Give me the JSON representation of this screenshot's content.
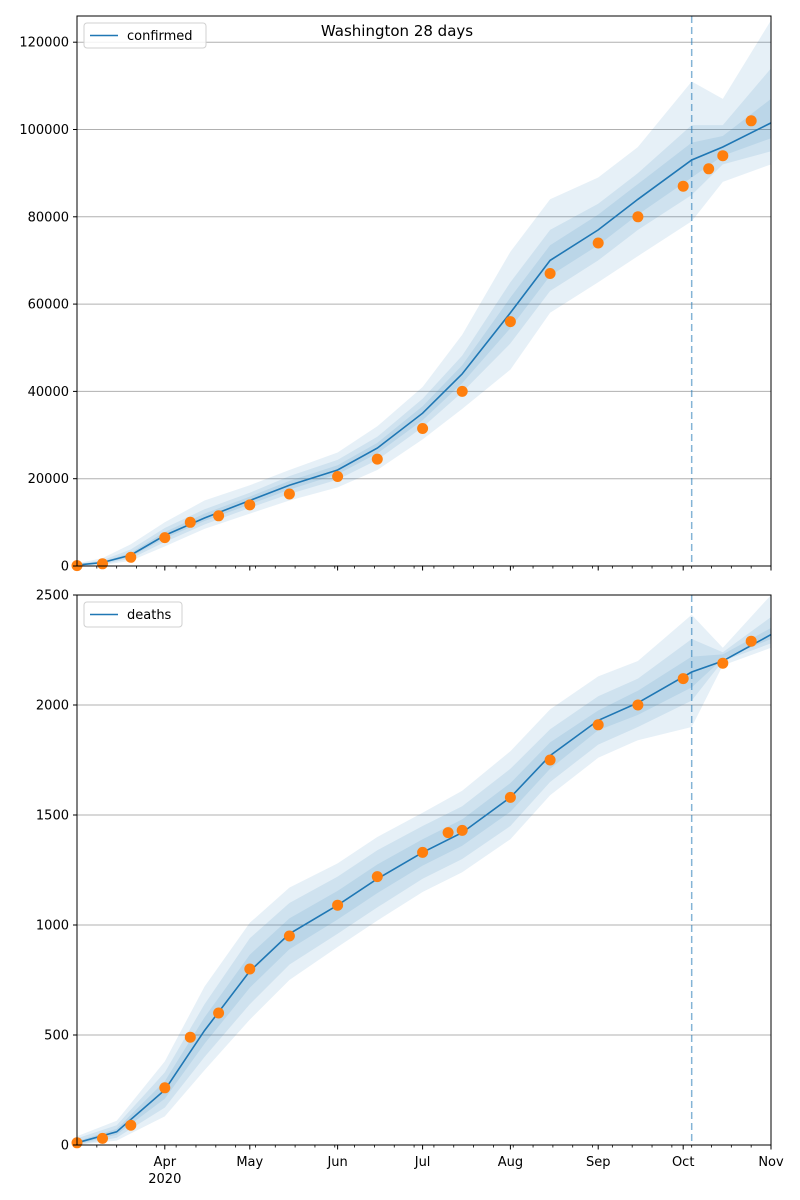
{
  "title": "Washington 28 days",
  "colors": {
    "model_line": "#1f77b4",
    "observed": "#ff7f0e",
    "band": "#1f77b4",
    "grid": "#b0b0b0",
    "vline": "#1f77b4"
  },
  "x_axis": {
    "start": "2020-03-01",
    "end": "2020-11-01",
    "month_ticks": [
      {
        "date": "2020-04-01",
        "label": "Apr"
      },
      {
        "date": "2020-05-01",
        "label": "May"
      },
      {
        "date": "2020-06-01",
        "label": "Jun"
      },
      {
        "date": "2020-07-01",
        "label": "Jul"
      },
      {
        "date": "2020-08-01",
        "label": "Aug"
      },
      {
        "date": "2020-09-01",
        "label": "Sep"
      },
      {
        "date": "2020-10-01",
        "label": "Oct"
      },
      {
        "date": "2020-11-01",
        "label": "Nov"
      }
    ],
    "year_label": "2020",
    "forecast_start": "2020-10-04"
  },
  "chart_data": [
    {
      "type": "line",
      "legend": "confirmed",
      "legend_position": "upper-left",
      "grid": "y",
      "ylim": [
        0,
        126000
      ],
      "yticks": [
        {
          "value": 0,
          "label": "0"
        },
        {
          "value": 20000,
          "label": "20000"
        },
        {
          "value": 40000,
          "label": "40000"
        },
        {
          "value": 60000,
          "label": "60000"
        },
        {
          "value": 80000,
          "label": "80000"
        },
        {
          "value": 100000,
          "label": "100000"
        },
        {
          "value": 120000,
          "label": "120000"
        }
      ],
      "model": [
        [
          "2020-03-01",
          200
        ],
        [
          "2020-03-10",
          800
        ],
        [
          "2020-03-20",
          2500
        ],
        [
          "2020-04-01",
          7000
        ],
        [
          "2020-04-15",
          11000
        ],
        [
          "2020-05-01",
          15000
        ],
        [
          "2020-05-15",
          18500
        ],
        [
          "2020-06-01",
          22000
        ],
        [
          "2020-06-15",
          27000
        ],
        [
          "2020-07-01",
          35000
        ],
        [
          "2020-07-15",
          44000
        ],
        [
          "2020-08-01",
          58000
        ],
        [
          "2020-08-15",
          70000
        ],
        [
          "2020-09-01",
          77000
        ],
        [
          "2020-09-15",
          84000
        ],
        [
          "2020-10-04",
          93000
        ],
        [
          "2020-10-15",
          96000
        ],
        [
          "2020-11-01",
          101500
        ]
      ],
      "bands": [
        {
          "level": "outer",
          "lower": [
            0,
            200,
            1200,
            4500,
            8500,
            12000,
            15000,
            18000,
            22000,
            29000,
            36000,
            45000,
            58000,
            65000,
            71000,
            79000,
            88000,
            92000
          ],
          "upper": [
            600,
            1800,
            5000,
            10000,
            15000,
            18500,
            22000,
            26000,
            32000,
            41000,
            53000,
            72000,
            84000,
            89000,
            96000,
            111000,
            107000,
            125000
          ]
        },
        {
          "level": "middle",
          "lower": [
            0,
            400,
            1700,
            5500,
            9500,
            13300,
            16500,
            19800,
            24300,
            31800,
            39800,
            51000,
            63000,
            70000,
            77000,
            85000,
            92000,
            95000
          ],
          "upper": [
            400,
            1300,
            3800,
            8700,
            13000,
            16800,
            20600,
            24300,
            29600,
            38300,
            48200,
            65000,
            77000,
            83000,
            90000,
            101000,
            101000,
            114000
          ]
        },
        {
          "level": "inner",
          "lower": [
            100,
            600,
            2100,
            6300,
            10300,
            14100,
            17500,
            21000,
            25800,
            33400,
            41900,
            54500,
            66500,
            73500,
            80500,
            89000,
            94000,
            98000
          ],
          "upper": [
            300,
            1000,
            3000,
            7800,
            12000,
            15900,
            19500,
            23100,
            28200,
            36600,
            46000,
            61500,
            73500,
            80500,
            87500,
            97000,
            98500,
            107000
          ]
        }
      ],
      "observed": [
        [
          "2020-03-01",
          100
        ],
        [
          "2020-03-10",
          500
        ],
        [
          "2020-03-20",
          2000
        ],
        [
          "2020-04-01",
          6500
        ],
        [
          "2020-04-10",
          10000
        ],
        [
          "2020-04-20",
          11500
        ],
        [
          "2020-05-01",
          14000
        ],
        [
          "2020-05-15",
          16500
        ],
        [
          "2020-06-01",
          20500
        ],
        [
          "2020-06-15",
          24500
        ],
        [
          "2020-07-01",
          31500
        ],
        [
          "2020-07-15",
          40000
        ],
        [
          "2020-08-01",
          56000
        ],
        [
          "2020-08-15",
          67000
        ],
        [
          "2020-09-01",
          74000
        ],
        [
          "2020-09-15",
          80000
        ],
        [
          "2020-10-01",
          87000
        ],
        [
          "2020-10-10",
          91000
        ],
        [
          "2020-10-15",
          94000
        ],
        [
          "2020-10-25",
          102000
        ]
      ]
    },
    {
      "type": "line",
      "legend": "deaths",
      "legend_position": "upper-left",
      "grid": "y",
      "ylim": [
        0,
        2500
      ],
      "yticks": [
        {
          "value": 0,
          "label": "0"
        },
        {
          "value": 500,
          "label": "500"
        },
        {
          "value": 1000,
          "label": "1000"
        },
        {
          "value": 1500,
          "label": "1500"
        },
        {
          "value": 2000,
          "label": "2000"
        },
        {
          "value": 2500,
          "label": "2500"
        }
      ],
      "model": [
        [
          "2020-03-01",
          10
        ],
        [
          "2020-03-15",
          60
        ],
        [
          "2020-04-01",
          250
        ],
        [
          "2020-04-15",
          520
        ],
        [
          "2020-05-01",
          790
        ],
        [
          "2020-05-15",
          960
        ],
        [
          "2020-06-01",
          1090
        ],
        [
          "2020-06-15",
          1210
        ],
        [
          "2020-07-01",
          1330
        ],
        [
          "2020-07-15",
          1420
        ],
        [
          "2020-08-01",
          1580
        ],
        [
          "2020-08-15",
          1770
        ],
        [
          "2020-09-01",
          1930
        ],
        [
          "2020-09-15",
          2010
        ],
        [
          "2020-10-04",
          2150
        ],
        [
          "2020-10-15",
          2200
        ],
        [
          "2020-11-01",
          2320
        ]
      ],
      "bands": [
        {
          "level": "outer",
          "lower": [
            0,
            20,
            130,
            340,
            570,
            750,
            900,
            1020,
            1150,
            1240,
            1390,
            1590,
            1760,
            1840,
            1900,
            2180,
            2260
          ],
          "upper": [
            40,
            110,
            380,
            720,
            1010,
            1170,
            1280,
            1400,
            1510,
            1610,
            1790,
            1980,
            2130,
            2200,
            2410,
            2260,
            2500
          ]
        },
        {
          "level": "middle",
          "lower": [
            0,
            33,
            170,
            400,
            640,
            820,
            960,
            1080,
            1210,
            1300,
            1450,
            1650,
            1820,
            1900,
            2020,
            2200,
            2280
          ],
          "upper": [
            30,
            90,
            330,
            640,
            940,
            1100,
            1220,
            1340,
            1450,
            1540,
            1710,
            1890,
            2040,
            2120,
            2300,
            2240,
            2400
          ]
        },
        {
          "level": "inner",
          "lower": [
            3,
            47,
            210,
            460,
            715,
            890,
            1025,
            1145,
            1270,
            1360,
            1515,
            1710,
            1885,
            1955,
            2080,
            2210,
            2300
          ],
          "upper": [
            17,
            73,
            290,
            580,
            865,
            1030,
            1155,
            1275,
            1390,
            1480,
            1645,
            1830,
            1975,
            2065,
            2220,
            2230,
            2350
          ]
        }
      ],
      "observed": [
        [
          "2020-03-01",
          10
        ],
        [
          "2020-03-10",
          30
        ],
        [
          "2020-03-20",
          90
        ],
        [
          "2020-04-01",
          260
        ],
        [
          "2020-04-10",
          490
        ],
        [
          "2020-04-20",
          600
        ],
        [
          "2020-05-01",
          800
        ],
        [
          "2020-05-15",
          950
        ],
        [
          "2020-06-01",
          1090
        ],
        [
          "2020-06-15",
          1220
        ],
        [
          "2020-07-01",
          1330
        ],
        [
          "2020-07-10",
          1420
        ],
        [
          "2020-07-15",
          1430
        ],
        [
          "2020-08-01",
          1580
        ],
        [
          "2020-08-15",
          1750
        ],
        [
          "2020-09-01",
          1910
        ],
        [
          "2020-09-15",
          2000
        ],
        [
          "2020-10-01",
          2120
        ],
        [
          "2020-10-15",
          2190
        ],
        [
          "2020-10-25",
          2290
        ]
      ]
    }
  ]
}
